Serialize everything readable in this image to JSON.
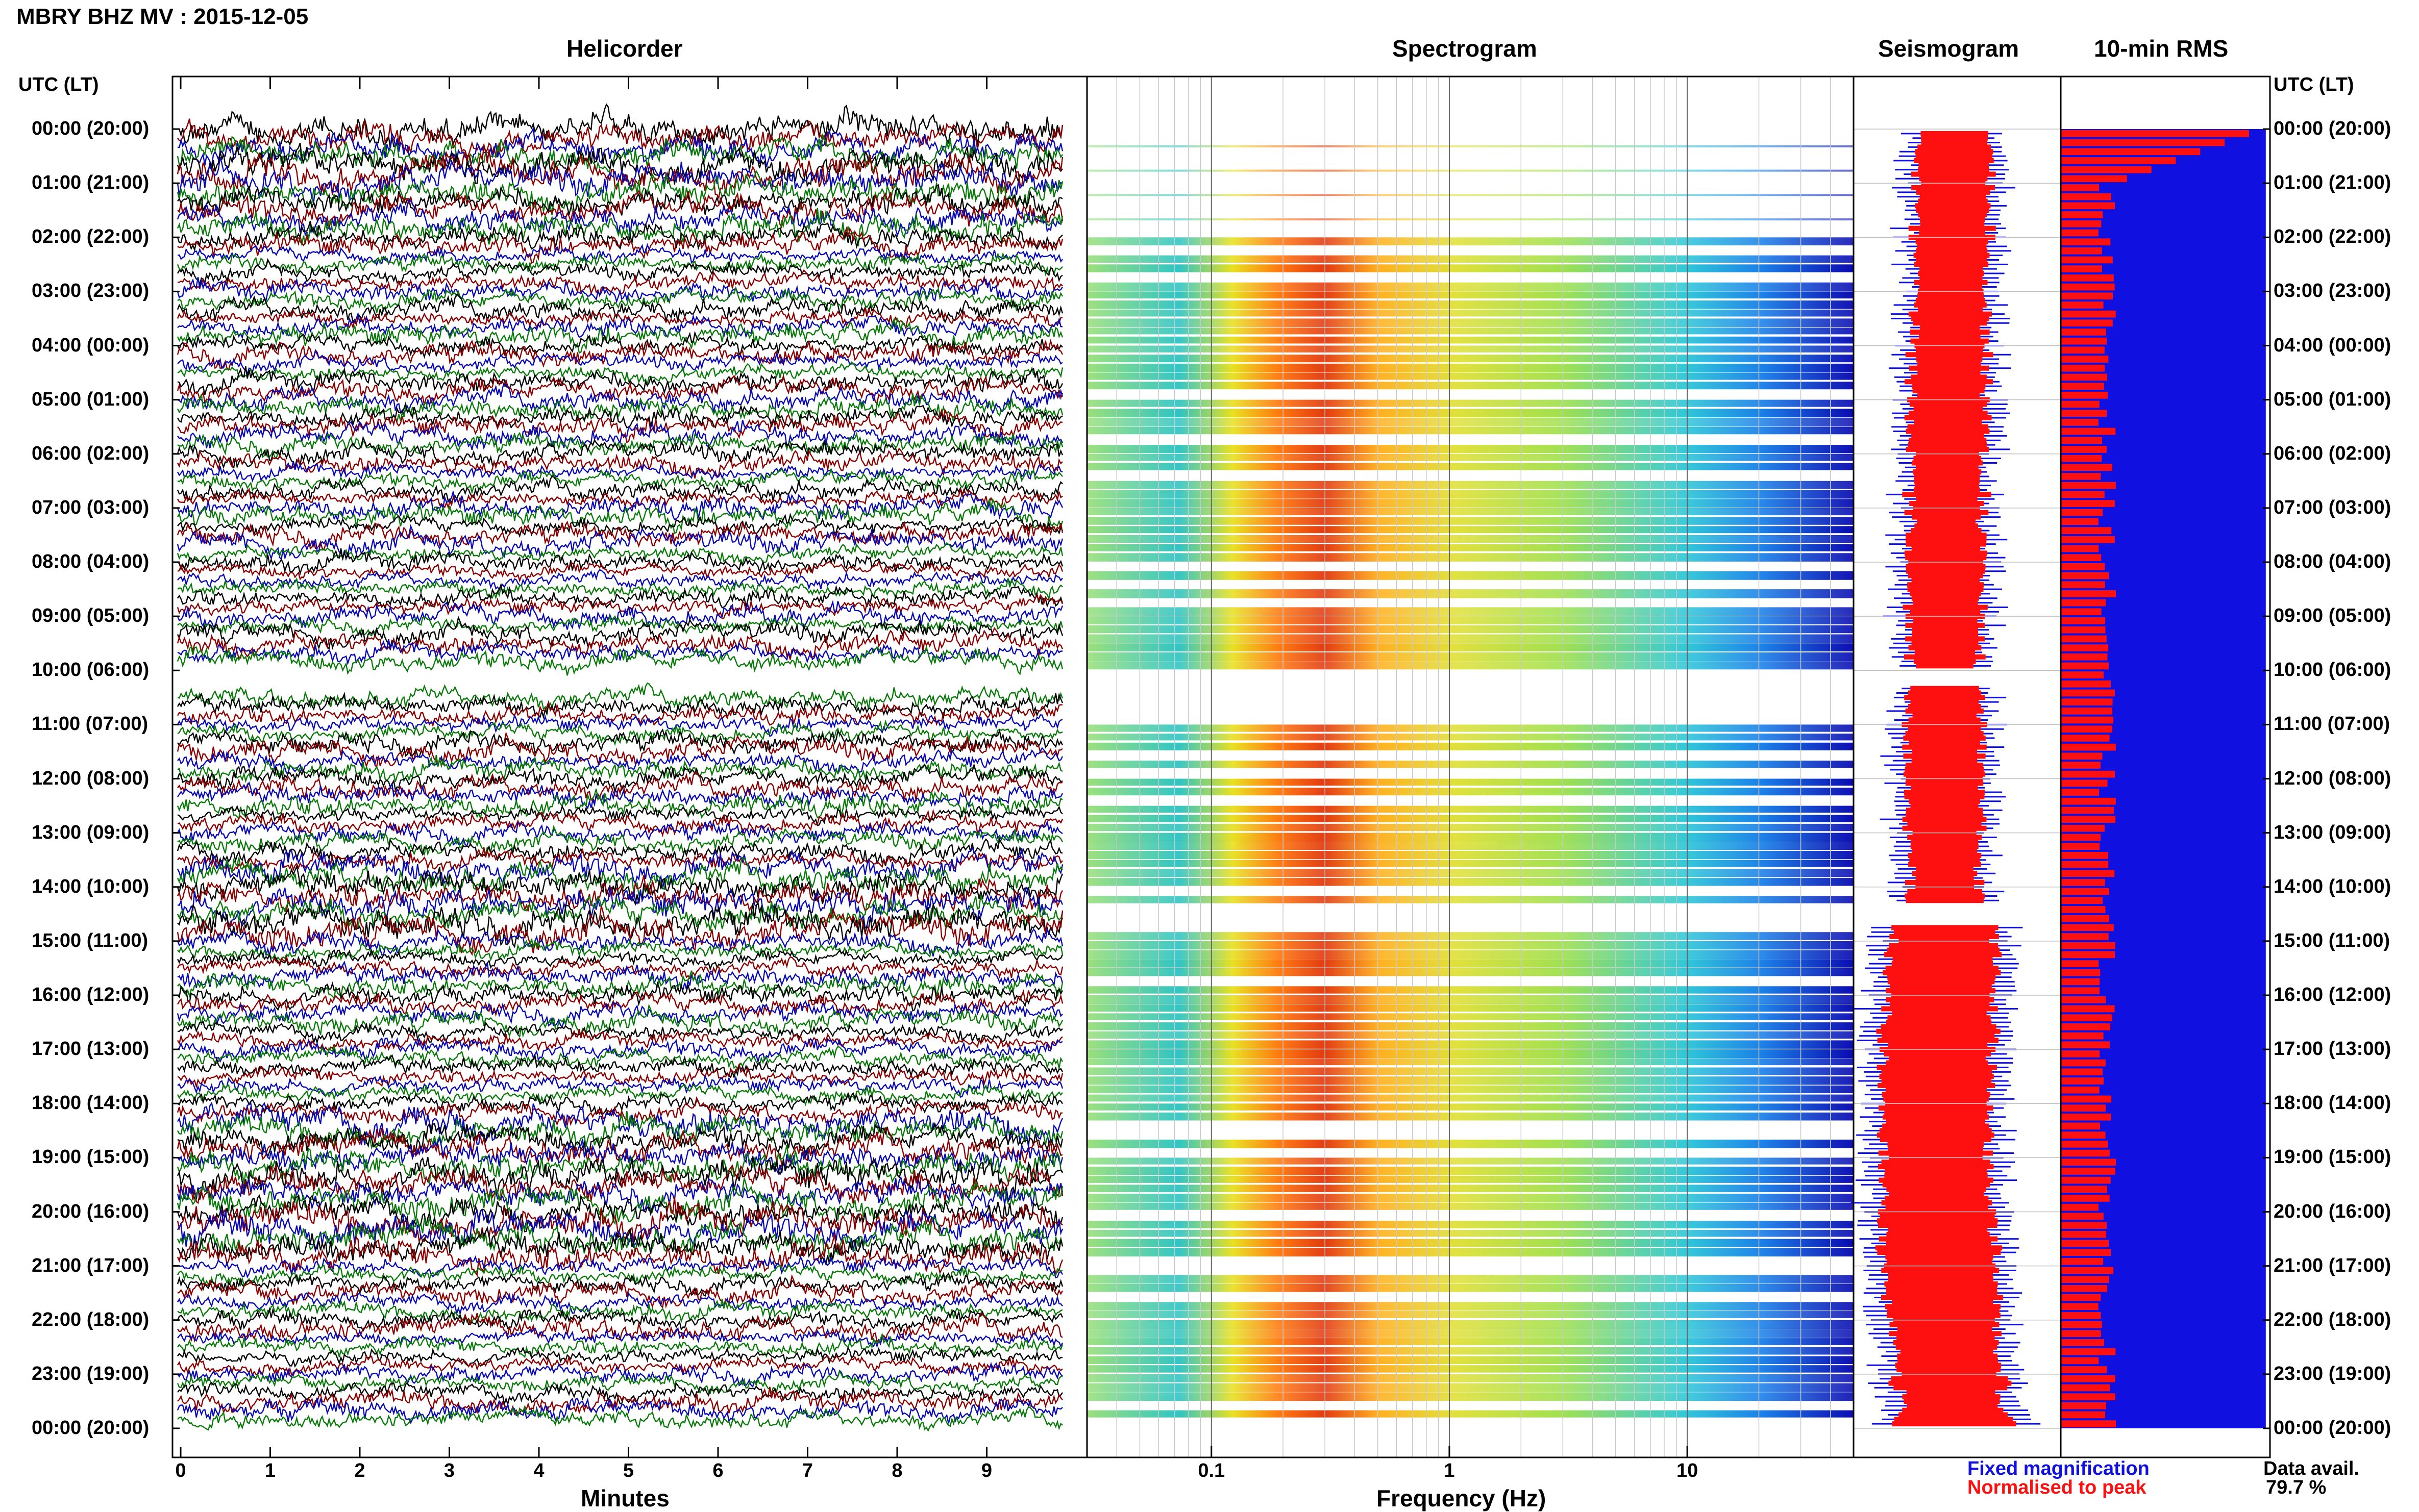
{
  "title": "MBRY BHZ MV : 2015-12-05",
  "panels": {
    "helicorder": "Helicorder",
    "spectrogram": "Spectrogram",
    "seismogram": "Seismogram",
    "rms": "10-min RMS"
  },
  "axis_header": "UTC (LT)",
  "legend": {
    "fixed": "Fixed magnification",
    "normalised": "Normalised to peak",
    "fixed_color": "#1010e0",
    "normalised_color": "#ff1010"
  },
  "data_avail": {
    "label": "Data avail.",
    "value": "79.7 %"
  },
  "chart_data": [
    {
      "type": "line",
      "panel": "helicorder",
      "xlabel": "Minutes",
      "x_ticks": [
        "0",
        "1",
        "2",
        "3",
        "4",
        "5",
        "6",
        "7",
        "8",
        "9"
      ],
      "xlim": [
        0,
        10
      ],
      "row_count": 144,
      "trace_colors": [
        "#000000",
        "#8b0000",
        "#0a0ab4",
        "#0a7a0a"
      ],
      "y_ticks": [
        "00:00 (20:00)",
        "01:00 (21:00)",
        "02:00 (22:00)",
        "03:00 (23:00)",
        "04:00 (00:00)",
        "05:00 (01:00)",
        "06:00 (02:00)",
        "07:00 (03:00)",
        "08:00 (04:00)",
        "09:00 (05:00)",
        "10:00 (06:00)",
        "11:00 (07:00)",
        "12:00 (08:00)",
        "13:00 (09:00)",
        "14:00 (10:00)",
        "15:00 (11:00)",
        "16:00 (12:00)",
        "17:00 (13:00)",
        "18:00 (14:00)",
        "19:00 (15:00)",
        "20:00 (16:00)",
        "21:00 (17:00)",
        "22:00 (18:00)",
        "23:00 (19:00)",
        "00:00 (20:00)"
      ],
      "gaps_hours": [
        [
          10.0,
          10.4
        ]
      ]
    },
    {
      "type": "heatmap",
      "panel": "spectrogram",
      "xlabel": "Frequency (Hz)",
      "x_scale": "log",
      "xlim": [
        0.03,
        50
      ],
      "x_ticks": [
        0.1,
        1,
        10
      ],
      "x_tick_labels": [
        "0.1",
        "1",
        "10"
      ],
      "colormap": "jet",
      "peak_band_hz": [
        0.2,
        0.6
      ],
      "data_hours": [
        [
          2.0,
          3.0
        ],
        [
          3.0,
          10.0
        ],
        [
          11.0,
          14.2
        ],
        [
          14.7,
          24.0
        ]
      ]
    },
    {
      "type": "area",
      "panel": "seismogram",
      "series": [
        {
          "name": "Fixed magnification",
          "color": "#1010e0"
        },
        {
          "name": "Normalised to peak",
          "color": "#ff1010"
        }
      ],
      "gaps_hours": [
        [
          10.0,
          10.3
        ],
        [
          14.3,
          14.7
        ]
      ]
    },
    {
      "type": "bar",
      "panel": "rms",
      "series": [
        {
          "name": "Fixed magnification",
          "color": "#1010e0",
          "level": 0.98
        },
        {
          "name": "Normalised to peak",
          "color": "#ff1010",
          "level_range": [
            0.18,
            0.42
          ],
          "first_hour_peak": 1.0
        }
      ]
    }
  ]
}
